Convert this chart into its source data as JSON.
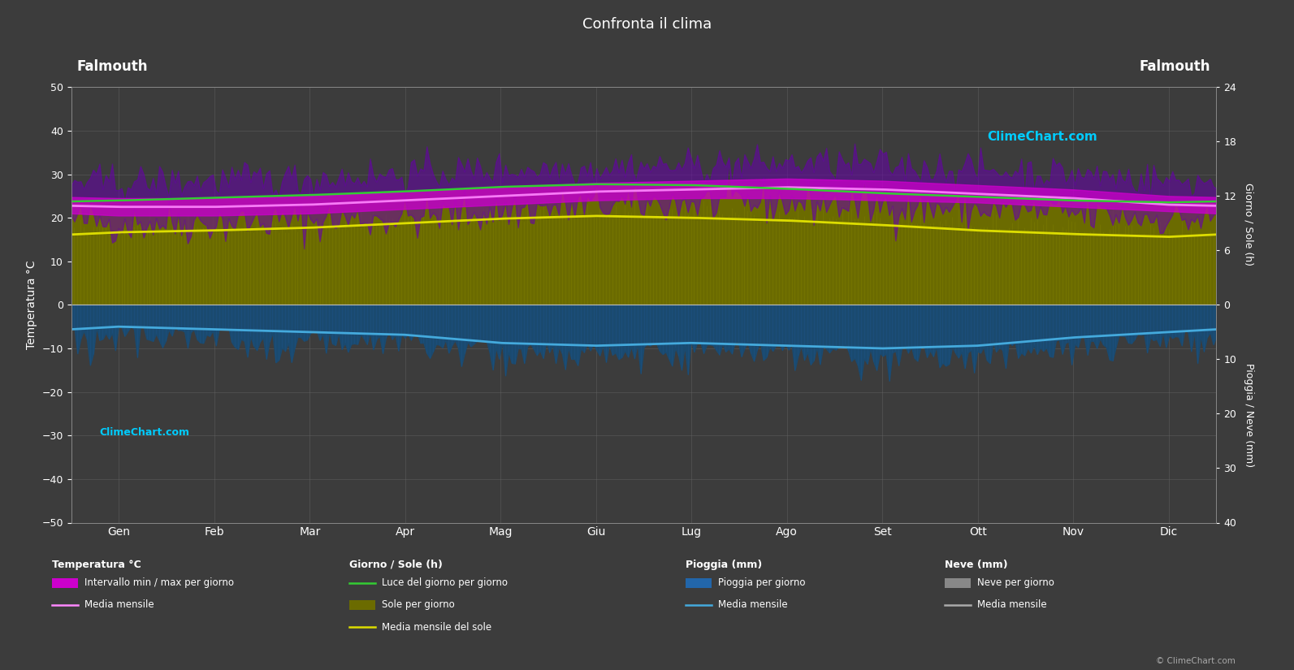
{
  "title": "Confronta il clima",
  "location_left": "Falmouth",
  "location_right": "Falmouth",
  "background_color": "#3c3c3c",
  "plot_bg_color": "#3c3c3c",
  "text_color": "#ffffff",
  "grid_color": "#666666",
  "months": [
    "Gen",
    "Feb",
    "Mar",
    "Apr",
    "Mag",
    "Giu",
    "Lug",
    "Ago",
    "Set",
    "Ott",
    "Nov",
    "Dic"
  ],
  "temp_ylim": [
    -50,
    50
  ],
  "temp_yticks": [
    -50,
    -40,
    -30,
    -20,
    -10,
    0,
    10,
    20,
    30,
    40,
    50
  ],
  "sun_yticks": [
    0,
    6,
    12,
    18,
    24
  ],
  "rain_yticks": [
    0,
    10,
    20,
    30,
    40
  ],
  "temp_avg_min": [
    20.5,
    20.5,
    21.0,
    22.0,
    23.0,
    24.0,
    24.5,
    24.5,
    24.0,
    23.5,
    22.5,
    21.5
  ],
  "temp_avg_max": [
    24.5,
    24.5,
    25.0,
    26.0,
    27.0,
    28.0,
    28.5,
    29.0,
    28.5,
    27.5,
    26.5,
    25.0
  ],
  "temp_daily_min": [
    19.0,
    19.0,
    19.5,
    20.0,
    21.5,
    23.0,
    23.5,
    23.5,
    23.0,
    22.0,
    21.0,
    20.0
  ],
  "temp_daily_max": [
    28.0,
    28.5,
    29.0,
    30.0,
    31.0,
    31.5,
    32.0,
    32.5,
    32.0,
    31.0,
    30.0,
    28.5
  ],
  "temp_monthly_mean": [
    22.5,
    22.5,
    23.0,
    24.0,
    25.0,
    26.0,
    26.5,
    27.0,
    26.5,
    25.5,
    24.5,
    23.0
  ],
  "daylight_hours": [
    11.5,
    11.8,
    12.1,
    12.5,
    13.0,
    13.3,
    13.2,
    12.8,
    12.3,
    11.9,
    11.5,
    11.3
  ],
  "sunshine_hours": [
    7.5,
    7.8,
    8.0,
    8.5,
    9.0,
    9.5,
    9.3,
    9.0,
    8.5,
    8.0,
    7.5,
    7.3
  ],
  "sunshine_monthly_mean": [
    8.0,
    8.2,
    8.5,
    9.0,
    9.5,
    9.8,
    9.6,
    9.3,
    8.8,
    8.2,
    7.8,
    7.5
  ],
  "rain_daily": [
    3.5,
    4.0,
    4.5,
    5.0,
    6.5,
    7.0,
    6.5,
    7.0,
    7.5,
    7.0,
    5.5,
    4.5
  ],
  "rain_monthly_mean": [
    4.0,
    4.5,
    5.0,
    5.5,
    7.0,
    7.5,
    7.0,
    7.5,
    8.0,
    7.5,
    6.0,
    5.0
  ],
  "ylabel_left": "Temperatura °C",
  "ylabel_right1": "Giorno / Sole (h)",
  "ylabel_right2": "Pioggia / Neve (mm)",
  "copyright_text": "© ClimeChart.com",
  "legend_temp_title": "Temperatura °C",
  "legend_sun_title": "Giorno / Sole (h)",
  "legend_rain_title": "Pioggia (mm)",
  "legend_snow_title": "Neve (mm)"
}
